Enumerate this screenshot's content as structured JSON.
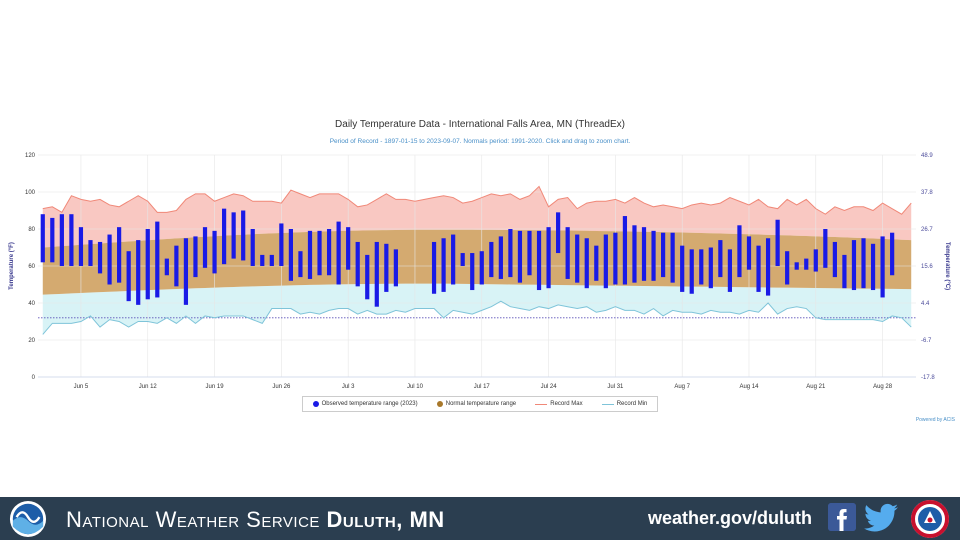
{
  "chart_data": {
    "type": "bar",
    "title": "Daily Temperature Data - International Falls Area, MN (ThreadEx)",
    "subtitle": "Period of Record - 1897-01-15 to 2023-09-07. Normals period: 1991-2020. Click and drag to zoom chart.",
    "ylabel": "Temperature (°F)",
    "ylabel_right": "Temperature (°C)",
    "ylim": [
      0,
      120
    ],
    "y_ticks": [
      0,
      20,
      40,
      60,
      80,
      100,
      120
    ],
    "y_ticks_right": [
      "-17.8",
      "-6.7",
      "4.4",
      "15.6",
      "26.7",
      "37.8",
      "48.9"
    ],
    "x_ticks": [
      {
        "label": "Jun 5",
        "day": 5
      },
      {
        "label": "Jun 12",
        "day": 12
      },
      {
        "label": "Jun 19",
        "day": 19
      },
      {
        "label": "Jun 26",
        "day": 26
      },
      {
        "label": "Jul 3",
        "day": 33
      },
      {
        "label": "Jul 10",
        "day": 40
      },
      {
        "label": "Jul 17",
        "day": 47
      },
      {
        "label": "Jul 24",
        "day": 54
      },
      {
        "label": "Jul 31",
        "day": 61
      },
      {
        "label": "Aug 7",
        "day": 68
      },
      {
        "label": "Aug 14",
        "day": 75
      },
      {
        "label": "Aug 21",
        "day": 82
      },
      {
        "label": "Aug 28",
        "day": 89
      }
    ],
    "freezing_line": 32,
    "grid": true,
    "legend_position": "bottom",
    "x_start_day": 1,
    "x_end_day": 92,
    "observed": [
      [
        62,
        88
      ],
      [
        62,
        86
      ],
      [
        60,
        88
      ],
      [
        60,
        88
      ],
      [
        60,
        81
      ],
      [
        60,
        74
      ],
      [
        56,
        73
      ],
      [
        50,
        77
      ],
      [
        51,
        81
      ],
      [
        41,
        68
      ],
      [
        39,
        74
      ],
      [
        42,
        80
      ],
      [
        43,
        84
      ],
      [
        55,
        64
      ],
      [
        49,
        71
      ],
      [
        39,
        75
      ],
      [
        54,
        76
      ],
      [
        59,
        81
      ],
      [
        56,
        79
      ],
      [
        61,
        91
      ],
      [
        64,
        89
      ],
      [
        63,
        90
      ],
      [
        60,
        80
      ],
      [
        60,
        66
      ],
      [
        60,
        66
      ],
      [
        60,
        83
      ],
      [
        52,
        80
      ],
      [
        54,
        68
      ],
      [
        53,
        79
      ],
      [
        55,
        79
      ],
      [
        55,
        80
      ],
      [
        50,
        84
      ],
      [
        58,
        81
      ],
      [
        49,
        73
      ],
      [
        42,
        66
      ],
      [
        38,
        73
      ],
      [
        46,
        72
      ],
      [
        49,
        69
      ],
      null,
      null,
      null,
      [
        45,
        73
      ],
      [
        46,
        75
      ],
      [
        50,
        77
      ],
      [
        60,
        67
      ],
      [
        47,
        67
      ],
      [
        50,
        68
      ],
      [
        54,
        73
      ],
      [
        53,
        76
      ],
      [
        54,
        80
      ],
      [
        51,
        79
      ],
      [
        55,
        79
      ],
      [
        47,
        79
      ],
      [
        48,
        81
      ],
      [
        67,
        89
      ],
      [
        53,
        81
      ],
      [
        51,
        77
      ],
      [
        48,
        75
      ],
      [
        52,
        71
      ],
      [
        48,
        77
      ],
      [
        50,
        78
      ],
      [
        50,
        87
      ],
      [
        51,
        82
      ],
      [
        52,
        81
      ],
      [
        52,
        79
      ],
      [
        54,
        78
      ],
      [
        51,
        78
      ],
      [
        46,
        71
      ],
      [
        45,
        69
      ],
      [
        50,
        69
      ],
      [
        48,
        70
      ],
      [
        54,
        74
      ],
      [
        46,
        69
      ],
      [
        54,
        82
      ],
      [
        58,
        76
      ],
      [
        46,
        71
      ],
      [
        44,
        75
      ],
      [
        60,
        85
      ],
      [
        50,
        68
      ],
      [
        58,
        62
      ],
      [
        58,
        64
      ],
      [
        57,
        69
      ],
      [
        59,
        80
      ],
      [
        54,
        73
      ],
      [
        48,
        66
      ],
      [
        47,
        74
      ],
      [
        48,
        75
      ],
      [
        47,
        72
      ],
      [
        43,
        76
      ],
      [
        55,
        78
      ]
    ],
    "normal_high": [
      70,
      79.6
    ],
    "normal_low": [
      44.5,
      50.5
    ],
    "normal_peak_day": 42,
    "record_max": [
      91,
      92,
      89,
      98,
      96,
      95,
      96,
      93,
      92,
      95,
      98,
      95,
      89,
      89,
      90,
      96,
      99,
      99,
      95,
      97,
      99,
      98,
      95,
      95,
      95,
      94,
      101,
      99,
      97,
      99,
      99,
      99,
      96,
      92,
      93,
      96,
      99,
      96,
      96,
      95,
      96,
      97,
      98,
      97,
      94,
      95,
      97,
      99,
      98,
      99,
      96,
      98,
      103,
      92,
      96,
      97,
      91,
      94,
      95,
      95,
      96,
      94,
      97,
      94,
      92,
      93,
      92,
      91,
      93,
      94,
      93,
      94,
      97,
      95,
      93,
      96,
      92,
      91,
      96,
      93,
      96,
      91,
      88,
      92,
      90,
      92,
      92,
      90,
      94,
      91,
      88,
      94
    ],
    "record_min": [
      23,
      29,
      29,
      29,
      30,
      33,
      27,
      31,
      30,
      27,
      30,
      30,
      29,
      32,
      29,
      33,
      29,
      33,
      32,
      33,
      33,
      33,
      31,
      29,
      37,
      37,
      37,
      34,
      35,
      34,
      36,
      37,
      37,
      34,
      36,
      34,
      34,
      36,
      35,
      37,
      37,
      37,
      32,
      36,
      35,
      34,
      36,
      38,
      41,
      38,
      37,
      36,
      38,
      37,
      39,
      38,
      37,
      38,
      35,
      36,
      38,
      36,
      36,
      34,
      37,
      33,
      36,
      35,
      35,
      34,
      36,
      35,
      35,
      34,
      36,
      35,
      40,
      34,
      37,
      38,
      37,
      32,
      31,
      31,
      31,
      31,
      31,
      31,
      30,
      33,
      32,
      27
    ]
  },
  "legend": {
    "observed_label": "Observed temperature range (2023)",
    "normal_label": "Normal temperature range",
    "record_max_label": "Record Max",
    "record_min_label": "Record Min"
  },
  "credit": "Powered by ACIS",
  "footer": {
    "org_name": "National Weather Service ",
    "office": "Duluth, MN",
    "url": "weather.gov/duluth"
  },
  "colors": {
    "observed": "#1a1ae6",
    "normal_fill": "#d4aa70",
    "record_max_line": "#f08878",
    "record_max_fill": "#f9c8c2",
    "record_min_line": "#7fc4d9",
    "record_min_fill": "#d8f3f6",
    "footer_bg": "#2b3e50"
  }
}
